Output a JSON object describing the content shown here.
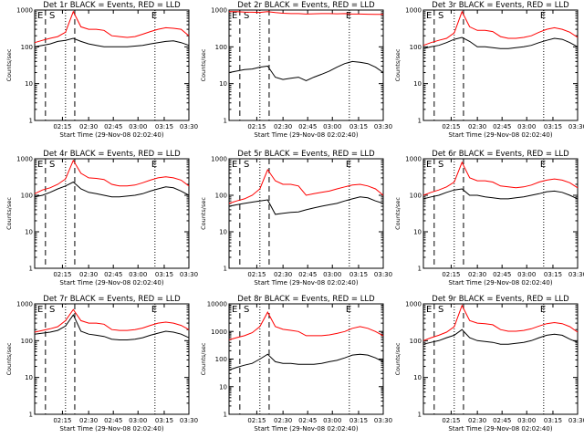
{
  "chart_data": [
    {
      "type": "line",
      "title": "Det 1r BLACK = Events, RED = LLD",
      "xlabel": "Start Time (29-Nov-08 02:02:40)",
      "ylabel": "Counts/sec",
      "markers": [
        "E",
        "S",
        "E"
      ],
      "series": [
        {
          "color": "#000000",
          "values": [
            100,
            110,
            120,
            140,
            150,
            170,
            140,
            120,
            110,
            100,
            100,
            100,
            100,
            105,
            110,
            120,
            130,
            140,
            145,
            130,
            110
          ]
        },
        {
          "color": "#ff0000",
          "values": [
            130,
            150,
            170,
            190,
            250,
            900,
            350,
            300,
            300,
            280,
            200,
            190,
            180,
            190,
            220,
            260,
            300,
            330,
            320,
            300,
            200
          ]
        }
      ]
    },
    {
      "type": "line",
      "title": "Det 2r BLACK = Events, RED = LLD",
      "xlabel": "Start Time (29-Nov-08 02:02:40)",
      "ylabel": "Counts/sec",
      "markers": [
        "E",
        "S",
        "E"
      ],
      "series": [
        {
          "color": "#000000",
          "values": [
            20,
            22,
            24,
            25,
            28,
            30,
            15,
            13,
            14,
            15,
            12,
            15,
            18,
            22,
            28,
            35,
            40,
            38,
            35,
            28,
            20
          ]
        },
        {
          "color": "#ff0000",
          "values": [
            900,
            900,
            880,
            870,
            860,
            900,
            850,
            820,
            800,
            800,
            780,
            790,
            800,
            800,
            790,
            800,
            780,
            780,
            770,
            760,
            760
          ]
        }
      ]
    },
    {
      "type": "line",
      "title": "Det 3r BLACK = Events, RED = LLD",
      "xlabel": "Start Time (29-Nov-08 02:02:40)",
      "ylabel": "Counts/sec",
      "markers": [
        "E",
        "S",
        "E"
      ],
      "series": [
        {
          "color": "#000000",
          "values": [
            90,
            100,
            110,
            130,
            160,
            180,
            140,
            100,
            100,
            95,
            90,
            90,
            95,
            100,
            110,
            130,
            150,
            170,
            160,
            130,
            100
          ]
        },
        {
          "color": "#ff0000",
          "values": [
            110,
            130,
            150,
            170,
            240,
            900,
            350,
            280,
            280,
            260,
            190,
            170,
            170,
            180,
            200,
            250,
            300,
            330,
            300,
            250,
            180
          ]
        }
      ]
    },
    {
      "type": "line",
      "title": "Det 4r BLACK = Events, RED = LLD",
      "xlabel": "Start Time (29-Nov-08 02:02:40)",
      "ylabel": "Counts/sec",
      "markers": [
        "E",
        "S",
        "E"
      ],
      "series": [
        {
          "color": "#000000",
          "values": [
            90,
            100,
            120,
            150,
            180,
            230,
            150,
            120,
            110,
            100,
            90,
            90,
            95,
            100,
            110,
            130,
            150,
            170,
            160,
            130,
            100
          ]
        },
        {
          "color": "#ff0000",
          "values": [
            110,
            140,
            160,
            200,
            280,
            900,
            400,
            300,
            290,
            270,
            200,
            180,
            180,
            190,
            220,
            260,
            300,
            320,
            300,
            260,
            180
          ]
        }
      ]
    },
    {
      "type": "line",
      "title": "Det 5r BLACK = Events, RED = LLD",
      "xlabel": "Start Time (29-Nov-08 02:02:40)",
      "ylabel": "Counts/sec",
      "markers": [
        "E",
        "S",
        "E"
      ],
      "series": [
        {
          "color": "#000000",
          "values": [
            50,
            55,
            60,
            65,
            70,
            75,
            30,
            32,
            34,
            35,
            40,
            45,
            50,
            55,
            60,
            70,
            80,
            90,
            85,
            70,
            60
          ]
        },
        {
          "color": "#ff0000",
          "values": [
            60,
            70,
            80,
            100,
            150,
            500,
            250,
            200,
            200,
            180,
            100,
            110,
            120,
            130,
            150,
            170,
            190,
            200,
            180,
            150,
            100
          ]
        }
      ]
    },
    {
      "type": "line",
      "title": "Det 6r BLACK = Events, RED = LLD",
      "xlabel": "Start Time (29-Nov-08 02:02:40)",
      "ylabel": "Counts/sec",
      "markers": [
        "E",
        "S",
        "E"
      ],
      "series": [
        {
          "color": "#000000",
          "values": [
            80,
            90,
            100,
            120,
            140,
            150,
            100,
            100,
            90,
            85,
            80,
            80,
            85,
            90,
            100,
            110,
            125,
            130,
            120,
            100,
            80
          ]
        },
        {
          "color": "#ff0000",
          "values": [
            100,
            120,
            140,
            170,
            230,
            800,
            300,
            250,
            250,
            230,
            180,
            170,
            160,
            170,
            190,
            230,
            260,
            280,
            260,
            220,
            160
          ]
        }
      ]
    },
    {
      "type": "line",
      "title": "Det 7r BLACK = Events, RED = LLD",
      "xlabel": "Start Time (29-Nov-08 02:02:40)",
      "ylabel": "Counts/sec",
      "markers": [
        "E",
        "S",
        "E"
      ],
      "series": [
        {
          "color": "#000000",
          "values": [
            150,
            160,
            170,
            190,
            250,
            500,
            180,
            150,
            140,
            130,
            110,
            105,
            105,
            110,
            120,
            140,
            160,
            180,
            170,
            150,
            120
          ]
        },
        {
          "color": "#ff0000",
          "values": [
            170,
            190,
            210,
            240,
            350,
            700,
            350,
            300,
            300,
            280,
            200,
            190,
            190,
            200,
            220,
            260,
            300,
            320,
            300,
            260,
            200
          ]
        }
      ]
    },
    {
      "type": "line",
      "title": "Det 8r BLACK = Events, RED = LLD",
      "xlabel": "Start Time (29-Nov-08 02:02:40)",
      "ylabel": "Counts/sec",
      "markers": [
        "E",
        "S",
        "E"
      ],
      "series": [
        {
          "color": "#000000",
          "values": [
            40,
            50,
            60,
            70,
            100,
            150,
            80,
            70,
            70,
            65,
            65,
            65,
            70,
            80,
            90,
            110,
            140,
            150,
            140,
            110,
            80
          ]
        },
        {
          "color": "#ff0000",
          "values": [
            500,
            600,
            700,
            900,
            1500,
            5000,
            1500,
            1200,
            1100,
            1000,
            700,
            700,
            700,
            750,
            850,
            1000,
            1300,
            1500,
            1300,
            1000,
            700
          ]
        }
      ]
    },
    {
      "type": "line",
      "title": "Det 9r BLACK = Events, RED = LLD",
      "xlabel": "Start Time (29-Nov-08 02:02:40)",
      "ylabel": "Counts/sec",
      "markers": [
        "E",
        "S",
        "E"
      ],
      "series": [
        {
          "color": "#000000",
          "values": [
            80,
            90,
            100,
            120,
            140,
            200,
            120,
            100,
            95,
            90,
            80,
            80,
            85,
            90,
            100,
            120,
            140,
            150,
            140,
            110,
            90
          ]
        },
        {
          "color": "#ff0000",
          "values": [
            100,
            120,
            140,
            170,
            240,
            900,
            350,
            300,
            290,
            270,
            200,
            180,
            180,
            190,
            210,
            250,
            290,
            310,
            290,
            240,
            170
          ]
        }
      ]
    }
  ],
  "xticks": [
    "02:15",
    "02:30",
    "02:45",
    "03:00",
    "03:15",
    "03:30"
  ],
  "yticks": [
    "1",
    "10",
    "100",
    "1000"
  ],
  "yticks_det8": [
    "1",
    "10",
    "100",
    "1000",
    "10000"
  ]
}
